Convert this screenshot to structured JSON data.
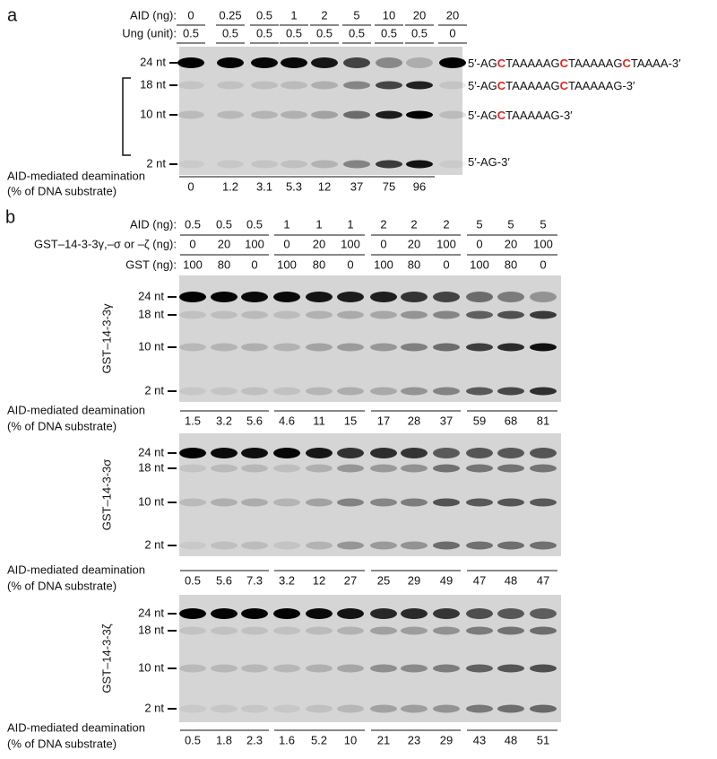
{
  "panel_a": {
    "label": "a",
    "rows": [
      {
        "label": "AID (ng):",
        "values": [
          "0",
          "0.25",
          "0.5",
          "1",
          "2",
          "5",
          "10",
          "20",
          "20"
        ]
      },
      {
        "label": "Ung (unit):",
        "values": [
          "0.5",
          "0.5",
          "0.5",
          "0.5",
          "0.5",
          "0.5",
          "0.5",
          "0.5",
          "0"
        ]
      }
    ],
    "markers": [
      "24 nt",
      "18 nt",
      "10 nt",
      "2 nt"
    ],
    "sequences": [
      [
        "5′-AG",
        "C",
        "TAAAAAG",
        "C",
        "TAAAAAG",
        "C",
        "TAAAA-3′"
      ],
      [
        "5′-AG",
        "C",
        "TAAAAAG",
        "C",
        "TAAAAAG-3′"
      ],
      [
        "5′-AG",
        "C",
        "TAAAAAG-3′"
      ],
      [
        "5′-AG-3′"
      ]
    ],
    "deamination_label": [
      "AID-mediated deamination",
      "(% of DNA substrate)"
    ],
    "deamination": [
      "0",
      "1.2",
      "3.1",
      "5.3",
      "12",
      "37",
      "75",
      "96"
    ]
  },
  "panel_b": {
    "label": "b",
    "rows": [
      {
        "label": "AID (ng):",
        "values": [
          "0.5",
          "0.5",
          "0.5",
          "1",
          "1",
          "1",
          "2",
          "2",
          "2",
          "5",
          "5",
          "5"
        ]
      },
      {
        "label": "GST–14-3-3γ,–σ or –ζ (ng):",
        "values": [
          "0",
          "20",
          "100",
          "0",
          "20",
          "100",
          "0",
          "20",
          "100",
          "0",
          "20",
          "100"
        ]
      },
      {
        "label": "GST (ng):",
        "values": [
          "100",
          "80",
          "0",
          "100",
          "80",
          "0",
          "100",
          "80",
          "0",
          "100",
          "80",
          "0"
        ]
      }
    ],
    "gels": [
      {
        "name": "GST–14-3-3γ",
        "markers": [
          "24 nt",
          "18 nt",
          "10 nt",
          "2 nt"
        ],
        "deamination_label": [
          "AID-mediated deamination",
          "(% of DNA substrate)"
        ],
        "deamination": [
          "1.5",
          "3.2",
          "5.6",
          "4.6",
          "11",
          "15",
          "17",
          "28",
          "37",
          "59",
          "68",
          "81"
        ]
      },
      {
        "name": "GST–14-3-3σ",
        "markers": [
          "24 nt",
          "18 nt",
          "10 nt",
          "2 nt"
        ],
        "deamination_label": [
          "AID-mediated deamination",
          "(% of DNA substrate)"
        ],
        "deamination": [
          "0.5",
          "5.6",
          "7.3",
          "3.2",
          "12",
          "27",
          "25",
          "29",
          "49",
          "47",
          "48",
          "47"
        ]
      },
      {
        "name": "GST–14-3-3ζ",
        "markers": [
          "24 nt",
          "18 nt",
          "10 nt",
          "2 nt"
        ],
        "deamination_label": [
          "AID-mediated deamination",
          "(% of DNA substrate)"
        ],
        "deamination": [
          "0.5",
          "1.8",
          "2.3",
          "1.6",
          "5.2",
          "10",
          "21",
          "23",
          "29",
          "43",
          "48",
          "51"
        ]
      }
    ]
  }
}
